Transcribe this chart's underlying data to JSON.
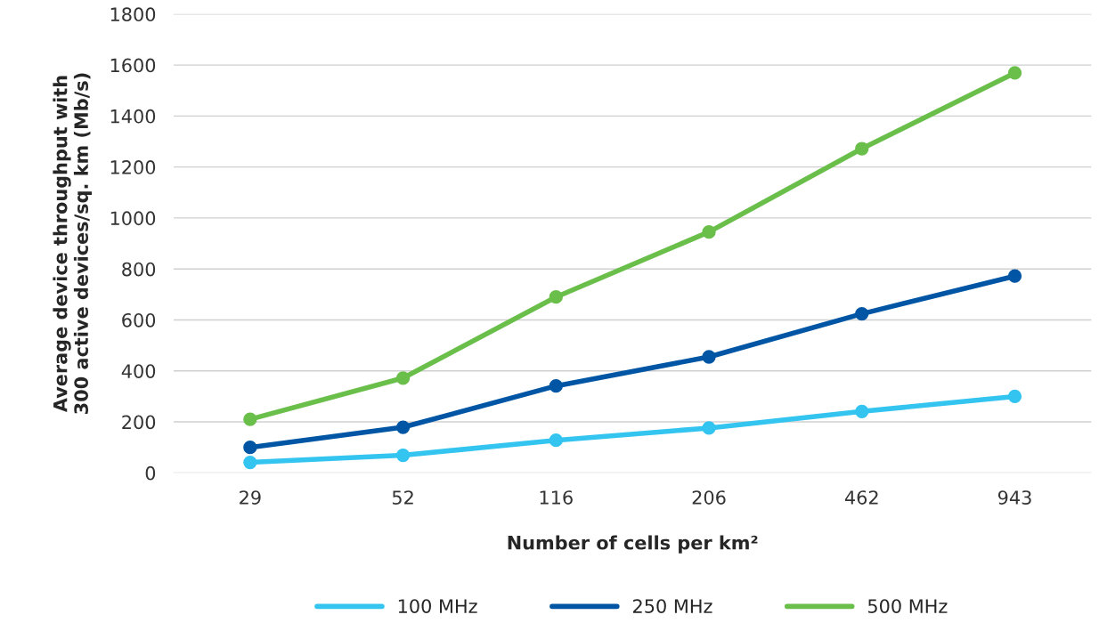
{
  "chart_data": {
    "type": "line",
    "xlabel": "Number of cells per km²",
    "ylabel": "Average device throughput with\n300 active devices/sq. km (Mb/s)",
    "categories": [
      "29",
      "52",
      "116",
      "206",
      "462",
      "943"
    ],
    "series": [
      {
        "name": "100 MHz",
        "color": "#33c4f0",
        "values": [
          41,
          69,
          128,
          176,
          241,
          300
        ]
      },
      {
        "name": "250 MHz",
        "color": "#0056a4",
        "values": [
          100,
          179,
          341,
          455,
          624,
          772
        ]
      },
      {
        "name": "500 MHz",
        "color": "#6abf4b",
        "values": [
          210,
          372,
          690,
          945,
          1272,
          1569
        ]
      }
    ],
    "ylim": [
      0,
      1800
    ],
    "yticks": [
      0,
      200,
      400,
      600,
      800,
      1000,
      1200,
      1400,
      1600,
      1800
    ],
    "grid": "y",
    "legend": "bottom",
    "marker": "circle",
    "line_style": "solid"
  }
}
